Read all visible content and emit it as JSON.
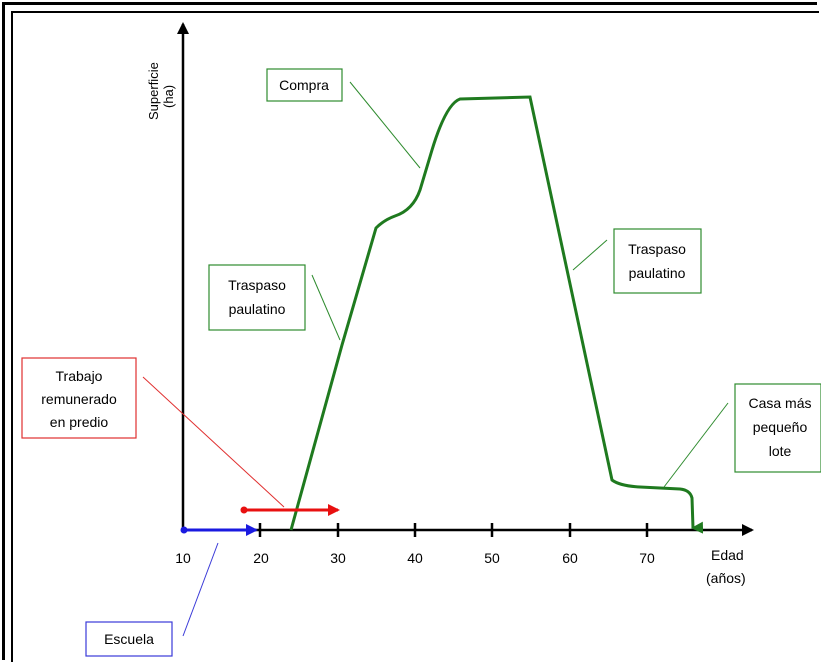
{
  "axes": {
    "y_label_line1": "Superficie",
    "y_label_line2": "(ha)",
    "x_label_line1": "Edad",
    "x_label_line2": "(años)",
    "x_ticks": [
      "10",
      "20",
      "30",
      "40",
      "50",
      "60",
      "70"
    ]
  },
  "annotations": {
    "compra": "Compra",
    "traspaso_left_1": "Traspaso",
    "traspaso_left_2": "paulatino",
    "traspaso_right_1": "Traspaso",
    "traspaso_right_2": "paulatino",
    "trabajo_1": "Trabajo",
    "trabajo_2": "remunerado",
    "trabajo_3": "en predio",
    "casa_1": "Casa más",
    "casa_2": "pequeño",
    "casa_3": "lote",
    "escuela": "Escuela"
  },
  "colors": {
    "curve": "#1f7a1f",
    "box_green": "#2e8b2e",
    "box_red": "#e03030",
    "box_blue": "#3a3ad8",
    "arrow_red": "#e81010",
    "arrow_blue": "#1a1ae0",
    "axis": "#000000"
  }
}
